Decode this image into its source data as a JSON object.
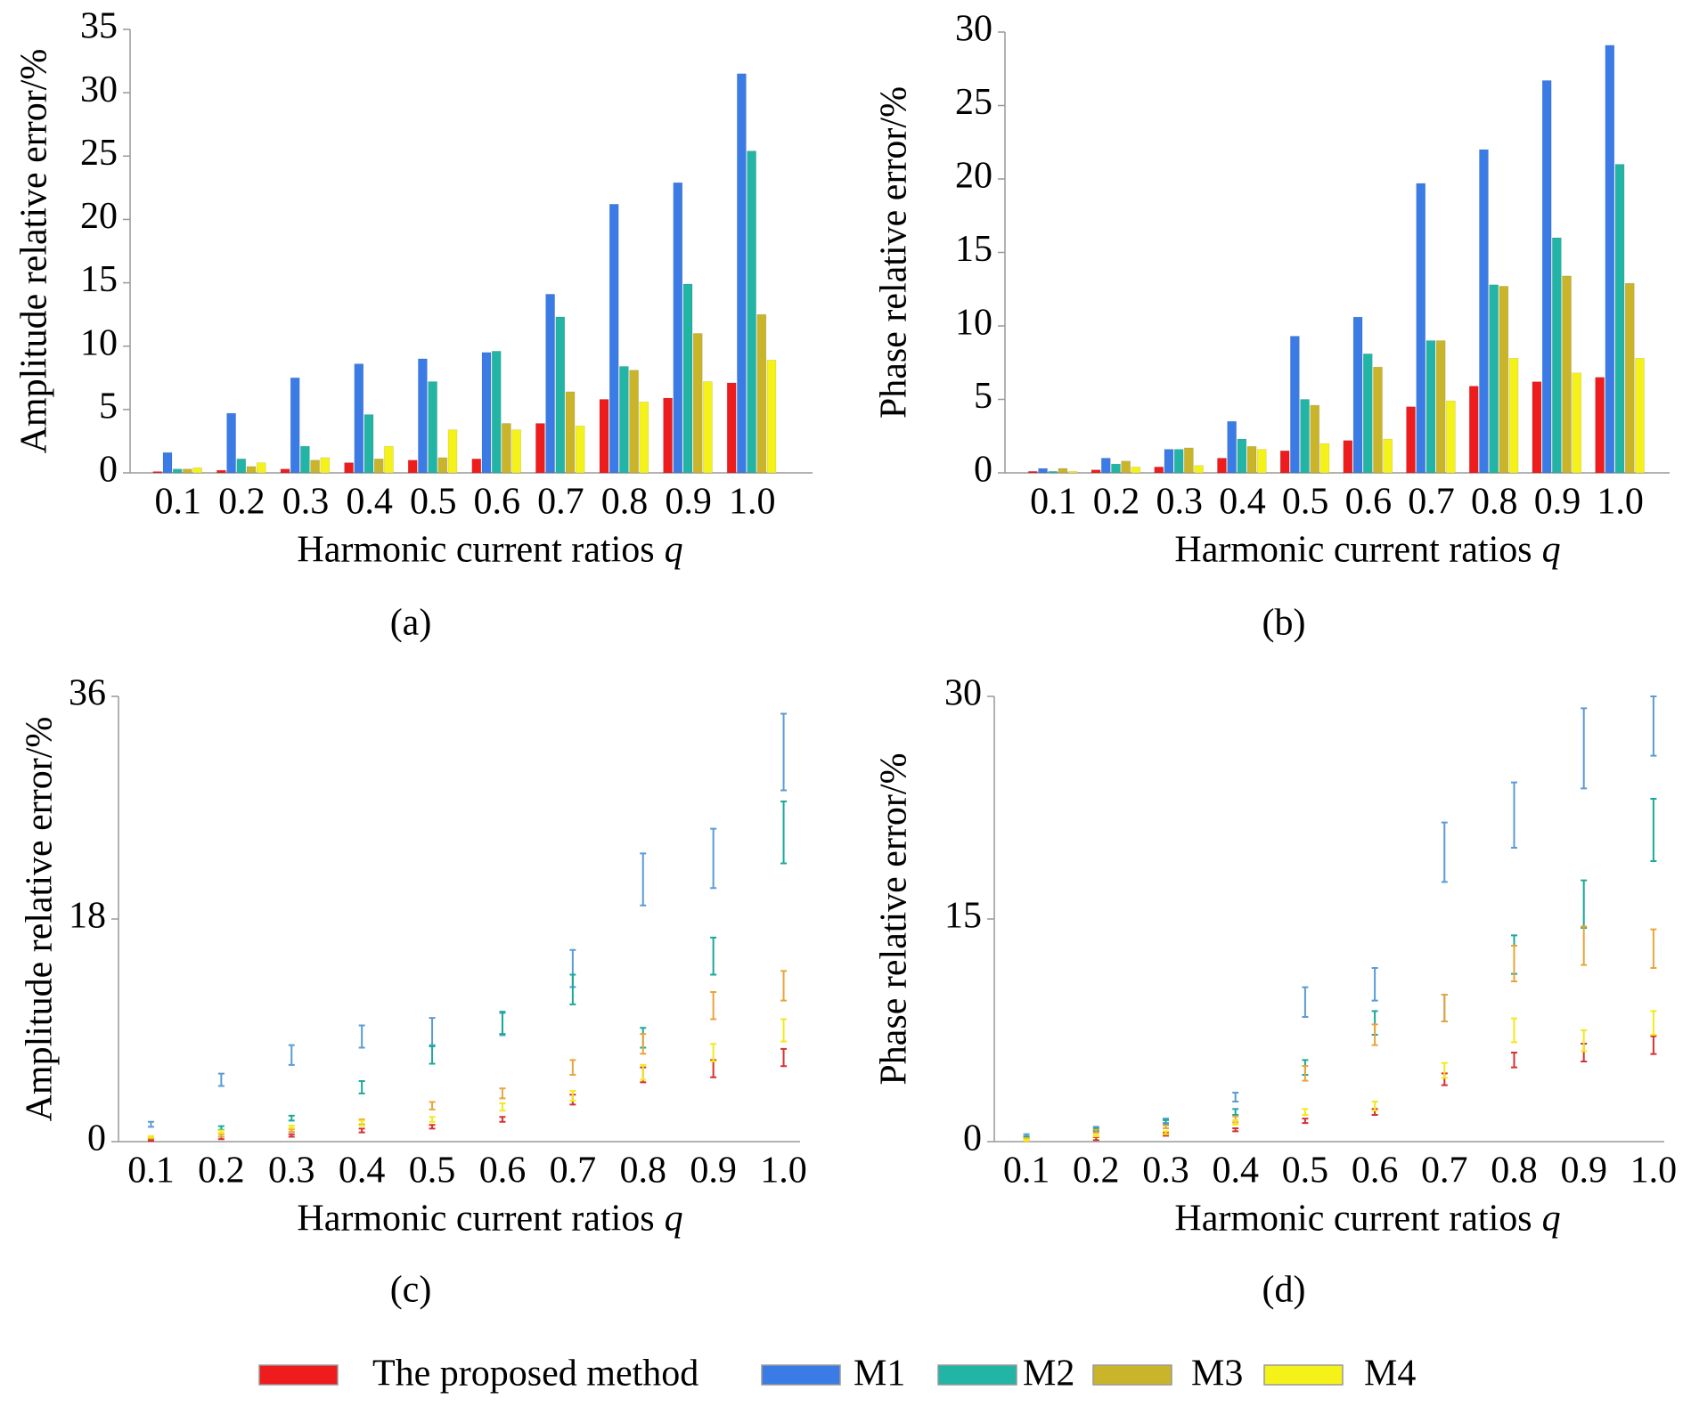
{
  "chart_data": [
    {
      "type": "bar",
      "caption": "(a)",
      "ylabel": "Amplitude relative error/%",
      "xlabel": "Harmonic current ratios",
      "xlabel_symbol": "q",
      "categories": [
        "0.1",
        "0.2",
        "0.3",
        "0.4",
        "0.5",
        "0.6",
        "0.7",
        "0.8",
        "0.9",
        "1.0"
      ],
      "ylim": [
        0,
        35
      ],
      "yticks": [
        0,
        5,
        10,
        15,
        20,
        25,
        30,
        35
      ],
      "series": [
        {
          "name": "The proposed method",
          "color": "#ee1c1c",
          "values": [
            0.1,
            0.2,
            0.3,
            0.8,
            1.0,
            1.1,
            3.9,
            5.8,
            5.9,
            7.1
          ]
        },
        {
          "name": "M1",
          "color": "#3b7be6",
          "values": [
            1.6,
            4.7,
            7.5,
            8.6,
            9.0,
            9.5,
            14.1,
            21.2,
            22.9,
            31.5
          ]
        },
        {
          "name": "M2",
          "color": "#22b5a5",
          "values": [
            0.3,
            1.1,
            2.1,
            4.6,
            7.2,
            9.6,
            12.3,
            8.4,
            14.9,
            25.4
          ]
        },
        {
          "name": "M3",
          "color": "#c9b42a",
          "values": [
            0.3,
            0.5,
            1.0,
            1.1,
            1.2,
            3.9,
            6.4,
            8.1,
            11.0,
            12.5
          ]
        },
        {
          "name": "M4",
          "color": "#f5f21a",
          "values": [
            0.4,
            0.8,
            1.2,
            2.1,
            3.4,
            3.4,
            3.7,
            5.6,
            7.2,
            8.9
          ]
        }
      ]
    },
    {
      "type": "bar",
      "caption": "(b)",
      "ylabel": "Phase relative error/%",
      "xlabel": "Harmonic current ratios",
      "xlabel_symbol": "q",
      "categories": [
        "0.1",
        "0.2",
        "0.3",
        "0.4",
        "0.5",
        "0.6",
        "0.7",
        "0.8",
        "0.9",
        "1.0"
      ],
      "ylim": [
        0,
        30
      ],
      "yticks": [
        0,
        5,
        10,
        15,
        20,
        25,
        30
      ],
      "series": [
        {
          "name": "The proposed method",
          "color": "#ee1c1c",
          "values": [
            0.1,
            0.2,
            0.4,
            1.0,
            1.5,
            2.2,
            4.5,
            5.9,
            6.2,
            6.5
          ]
        },
        {
          "name": "M1",
          "color": "#3b7be6",
          "values": [
            0.3,
            1.0,
            1.6,
            3.5,
            9.3,
            10.6,
            19.7,
            22.0,
            26.7,
            29.1
          ]
        },
        {
          "name": "M2",
          "color": "#22b5a5",
          "values": [
            0.1,
            0.6,
            1.6,
            2.3,
            5.0,
            8.1,
            9.0,
            12.8,
            16.0,
            21.0
          ]
        },
        {
          "name": "M3",
          "color": "#c9b42a",
          "values": [
            0.3,
            0.8,
            1.7,
            1.8,
            4.6,
            7.2,
            9.0,
            12.7,
            13.4,
            12.9
          ]
        },
        {
          "name": "M4",
          "color": "#f5f21a",
          "values": [
            0.1,
            0.4,
            0.5,
            1.6,
            2.0,
            2.3,
            4.9,
            7.8,
            6.8,
            7.8
          ]
        }
      ]
    },
    {
      "type": "errorbar",
      "caption": "(c)",
      "ylabel": "Amplitude relative error/%",
      "xlabel": "Harmonic current ratios",
      "xlabel_symbol": "q",
      "categories": [
        "0.1",
        "0.2",
        "0.3",
        "0.4",
        "0.5",
        "0.6",
        "0.7",
        "0.8",
        "0.9",
        "1.0"
      ],
      "ylim": [
        0,
        36
      ],
      "yticks": [
        0,
        18,
        36
      ],
      "series": [
        {
          "name": "The proposed method",
          "color": "#d83030",
          "values": [
            0.1,
            0.3,
            0.5,
            0.9,
            1.2,
            1.8,
            3.4,
            5.4,
            5.9,
            6.8
          ],
          "errors": [
            0.05,
            0.1,
            0.1,
            0.15,
            0.15,
            0.2,
            0.4,
            0.6,
            0.7,
            0.7
          ]
        },
        {
          "name": "M1",
          "color": "#5b9bd5",
          "values": [
            1.4,
            5.0,
            7.0,
            8.5,
            8.9,
            9.5,
            14.0,
            21.2,
            22.9,
            31.5
          ],
          "errors": [
            0.2,
            0.5,
            0.8,
            0.9,
            1.1,
            0.9,
            1.5,
            2.1,
            2.4,
            3.1
          ]
        },
        {
          "name": "M2",
          "color": "#1aa99a",
          "values": [
            0.3,
            1.1,
            1.9,
            4.4,
            7.0,
            9.6,
            12.3,
            8.4,
            15.0,
            25.0
          ],
          "errors": [
            0.05,
            0.15,
            0.2,
            0.5,
            0.7,
            0.9,
            1.2,
            0.8,
            1.5,
            2.5
          ]
        },
        {
          "name": "M3",
          "color": "#e9a53a",
          "values": [
            0.3,
            0.5,
            0.9,
            1.6,
            2.9,
            3.9,
            6.0,
            7.9,
            11.0,
            12.6
          ],
          "errors": [
            0.05,
            0.1,
            0.1,
            0.2,
            0.3,
            0.4,
            0.6,
            0.8,
            1.1,
            1.2
          ]
        },
        {
          "name": "M4",
          "color": "#f2ea1a",
          "values": [
            0.4,
            0.8,
            1.2,
            1.5,
            1.8,
            2.8,
            3.7,
            5.6,
            7.2,
            9.0
          ],
          "errors": [
            0.05,
            0.1,
            0.1,
            0.2,
            0.2,
            0.3,
            0.4,
            0.6,
            0.7,
            0.9
          ]
        }
      ]
    },
    {
      "type": "errorbar",
      "caption": "(d)",
      "ylabel": "Phase relative error/%",
      "xlabel": "Harmonic current ratios",
      "xlabel_symbol": "q",
      "categories": [
        "0.1",
        "0.2",
        "0.3",
        "0.4",
        "0.5",
        "0.6",
        "0.7",
        "0.8",
        "0.9",
        "1.0"
      ],
      "ylim": [
        0,
        30
      ],
      "yticks": [
        0,
        15,
        30
      ],
      "series": [
        {
          "name": "The proposed method",
          "color": "#d83030",
          "values": [
            0.1,
            0.2,
            0.5,
            0.8,
            1.4,
            2.0,
            4.2,
            5.5,
            6.0,
            6.5
          ],
          "errors": [
            0.05,
            0.1,
            0.1,
            0.1,
            0.15,
            0.2,
            0.4,
            0.5,
            0.6,
            0.6
          ]
        },
        {
          "name": "M1",
          "color": "#5b9bd5",
          "values": [
            0.4,
            0.9,
            1.4,
            3.0,
            9.4,
            10.6,
            19.5,
            22.0,
            26.5,
            28.0
          ],
          "errors": [
            0.1,
            0.1,
            0.15,
            0.3,
            1.0,
            1.1,
            2.0,
            2.2,
            2.7,
            2.0
          ]
        },
        {
          "name": "M2",
          "color": "#1aa99a",
          "values": [
            0.3,
            0.8,
            1.3,
            2.0,
            5.0,
            8.0,
            9.0,
            12.6,
            16.0,
            21.0
          ],
          "errors": [
            0.05,
            0.1,
            0.15,
            0.2,
            0.5,
            0.8,
            0.9,
            1.3,
            1.6,
            2.1
          ]
        },
        {
          "name": "M3",
          "color": "#e9a53a",
          "values": [
            0.2,
            0.7,
            1.0,
            1.5,
            4.6,
            7.2,
            9.0,
            12.0,
            13.2,
            13.0
          ],
          "errors": [
            0.05,
            0.1,
            0.1,
            0.2,
            0.5,
            0.7,
            0.9,
            1.2,
            1.3,
            1.3
          ]
        },
        {
          "name": "M4",
          "color": "#f2ea1a",
          "values": [
            0.1,
            0.4,
            0.6,
            1.3,
            2.0,
            2.4,
            4.8,
            7.5,
            6.8,
            8.0
          ],
          "errors": [
            0.05,
            0.05,
            0.1,
            0.15,
            0.2,
            0.3,
            0.5,
            0.8,
            0.7,
            0.8
          ]
        }
      ]
    }
  ]
}
